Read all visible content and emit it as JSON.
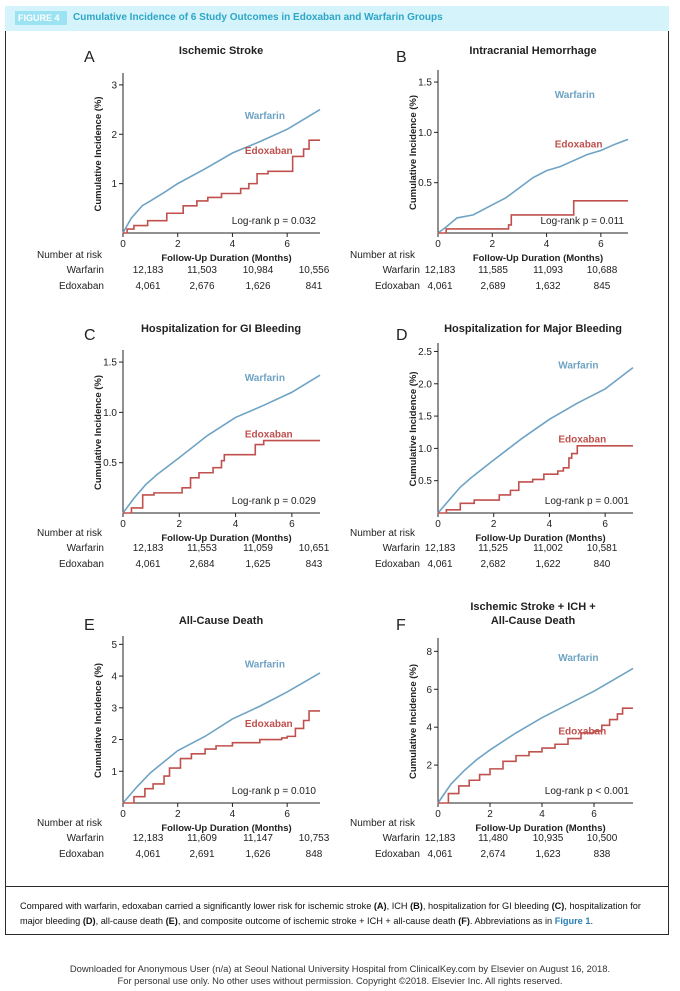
{
  "figure": {
    "label": "FIGURE 4",
    "title": "Cumulative Incidence of 6 Study Outcomes in Edoxaban and Warfarin Groups"
  },
  "caption": {
    "part1": "Compared with warfarin, edoxaban carried a significantly lower risk for ischemic stroke ",
    "a": "(A)",
    "part2": ", ICH ",
    "b": "(B)",
    "part3": ", hospitalization for GI bleeding ",
    "c": "(C)",
    "part4": ", hospitalization for major bleeding ",
    "d": "(D)",
    "part5": ", all-cause death ",
    "e": "(E)",
    "part6": ", and composite outcome of ischemic stroke + ICH + all-cause death ",
    "f": "(F)",
    "part7": ". Abbreviations as in ",
    "link": "Figure 1",
    "end": "."
  },
  "footer": {
    "line1": "Downloaded for Anonymous User (n/a) at Seoul National University Hospital from ClinicalKey.com by Elsevier on August 16, 2018.",
    "line2": "For personal use only. No other uses without permission. Copyright ©2018. Elsevier Inc. All rights reserved."
  },
  "colors": {
    "warfarin": "#6fa3c4",
    "edoxaban": "#c0504d",
    "header_bg": "#d4f3fa",
    "title": "#2da6c8"
  },
  "risk_header": "Number at risk",
  "chart_data": [
    {
      "panel": "A",
      "type": "line",
      "title": "Ischemic Stroke",
      "xlabel": "Follow-Up Duration (Months)",
      "ylabel": "Cumulative Incidence (%)",
      "xlim": [
        0,
        7.2
      ],
      "ylim": [
        0,
        3.2
      ],
      "xticks": [
        "0",
        "2",
        "4",
        "6"
      ],
      "yticks": [
        "1",
        "2",
        "3"
      ],
      "annotation": "Log-rank p = 0.032",
      "series": [
        {
          "name": "Warfarin",
          "step": false,
          "points": [
            [
              0,
              0
            ],
            [
              0.3,
              0.3
            ],
            [
              0.7,
              0.55
            ],
            [
              1,
              0.65
            ],
            [
              1.5,
              0.82
            ],
            [
              2,
              1.0
            ],
            [
              3,
              1.3
            ],
            [
              4,
              1.62
            ],
            [
              5,
              1.85
            ],
            [
              6,
              2.1
            ],
            [
              7.2,
              2.5
            ]
          ]
        },
        {
          "name": "Edoxaban",
          "step": true,
          "points": [
            [
              0,
              0
            ],
            [
              0.15,
              0.08
            ],
            [
              0.4,
              0.15
            ],
            [
              0.9,
              0.25
            ],
            [
              1.4,
              0.25
            ],
            [
              1.6,
              0.4
            ],
            [
              2.2,
              0.55
            ],
            [
              2.7,
              0.65
            ],
            [
              3.1,
              0.72
            ],
            [
              3.6,
              0.8
            ],
            [
              4.3,
              0.9
            ],
            [
              4.6,
              1.0
            ],
            [
              4.9,
              1.2
            ],
            [
              5.3,
              1.25
            ],
            [
              6.2,
              1.55
            ],
            [
              6.6,
              1.7
            ],
            [
              6.8,
              1.88
            ],
            [
              7.2,
              1.88
            ]
          ]
        }
      ],
      "risk": [
        {
          "name": "Warfarin",
          "values": [
            "12,183",
            "11,503",
            "10,984",
            "10,556"
          ]
        },
        {
          "name": "Edoxaban",
          "values": [
            "4,061",
            "2,676",
            "1,626",
            "841"
          ]
        }
      ]
    },
    {
      "panel": "B",
      "type": "line",
      "title": "Intracranial Hemorrhage",
      "xlabel": "Follow-Up Duration (Months)",
      "ylabel": "Cumulative Incidence (%)",
      "xlim": [
        0,
        7.0
      ],
      "ylim": [
        0,
        1.6
      ],
      "xticks": [
        "0",
        "2",
        "4",
        "6"
      ],
      "yticks": [
        "0.5",
        "1.0",
        "1.5"
      ],
      "annotation": "Log-rank p = 0.011",
      "series": [
        {
          "name": "Warfarin",
          "step": false,
          "points": [
            [
              0,
              0
            ],
            [
              0.3,
              0.06
            ],
            [
              0.7,
              0.15
            ],
            [
              1.3,
              0.18
            ],
            [
              2,
              0.28
            ],
            [
              2.5,
              0.35
            ],
            [
              3,
              0.45
            ],
            [
              3.5,
              0.55
            ],
            [
              4,
              0.62
            ],
            [
              4.5,
              0.66
            ],
            [
              5,
              0.72
            ],
            [
              5.5,
              0.78
            ],
            [
              6,
              0.82
            ],
            [
              6.5,
              0.88
            ],
            [
              7,
              0.93
            ]
          ]
        },
        {
          "name": "Edoxaban",
          "step": true,
          "points": [
            [
              0,
              0
            ],
            [
              0.3,
              0.04
            ],
            [
              2.0,
              0.04
            ],
            [
              2.6,
              0.08
            ],
            [
              2.7,
              0.18
            ],
            [
              4.8,
              0.18
            ],
            [
              5.0,
              0.32
            ],
            [
              7,
              0.32
            ]
          ]
        }
      ],
      "risk": [
        {
          "name": "Warfarin",
          "values": [
            "12,183",
            "11,585",
            "11,093",
            "10,688"
          ]
        },
        {
          "name": "Edoxaban",
          "values": [
            "4,061",
            "2,689",
            "1,632",
            "845"
          ]
        }
      ]
    },
    {
      "panel": "C",
      "type": "line",
      "title": "Hospitalization for GI Bleeding",
      "xlabel": "Follow-Up Duration (Months)",
      "ylabel": "Cumulative Incidence (%)",
      "xlim": [
        0,
        7.0
      ],
      "ylim": [
        0,
        1.6
      ],
      "xticks": [
        "0",
        "2",
        "4",
        "6"
      ],
      "yticks": [
        "0.5",
        "1.0",
        "1.5"
      ],
      "annotation": "Log-rank p = 0.029",
      "series": [
        {
          "name": "Warfarin",
          "step": false,
          "points": [
            [
              0,
              0
            ],
            [
              0.4,
              0.15
            ],
            [
              0.8,
              0.28
            ],
            [
              1.2,
              0.38
            ],
            [
              2,
              0.55
            ],
            [
              3,
              0.77
            ],
            [
              4,
              0.95
            ],
            [
              5,
              1.07
            ],
            [
              6,
              1.2
            ],
            [
              7,
              1.37
            ]
          ]
        },
        {
          "name": "Edoxaban",
          "step": true,
          "points": [
            [
              0,
              0
            ],
            [
              0.3,
              0.05
            ],
            [
              0.7,
              0.18
            ],
            [
              1.1,
              0.2
            ],
            [
              1.9,
              0.2
            ],
            [
              2.1,
              0.25
            ],
            [
              2.4,
              0.35
            ],
            [
              2.7,
              0.4
            ],
            [
              3.2,
              0.45
            ],
            [
              3.5,
              0.52
            ],
            [
              3.6,
              0.58
            ],
            [
              4.4,
              0.58
            ],
            [
              4.7,
              0.68
            ],
            [
              5.0,
              0.72
            ],
            [
              7,
              0.72
            ]
          ]
        }
      ],
      "risk": [
        {
          "name": "Warfarin",
          "values": [
            "12,183",
            "11,553",
            "11,059",
            "10,651"
          ]
        },
        {
          "name": "Edoxaban",
          "values": [
            "4,061",
            "2,684",
            "1,625",
            "843"
          ]
        }
      ]
    },
    {
      "panel": "D",
      "type": "line",
      "title": "Hospitalization for Major Bleeding",
      "xlabel": "Follow-Up Duration (Months)",
      "ylabel": "Cumulative Incidence (%)",
      "xlim": [
        0,
        7.0
      ],
      "ylim": [
        0,
        2.6
      ],
      "xticks": [
        "0",
        "2",
        "4",
        "6"
      ],
      "yticks": [
        "0.5",
        "1.0",
        "1.5",
        "2.0",
        "2.5"
      ],
      "annotation": "Log-rank p = 0.001",
      "series": [
        {
          "name": "Warfarin",
          "step": false,
          "points": [
            [
              0,
              0
            ],
            [
              0.4,
              0.2
            ],
            [
              0.8,
              0.4
            ],
            [
              1.2,
              0.55
            ],
            [
              2,
              0.82
            ],
            [
              3,
              1.15
            ],
            [
              4,
              1.45
            ],
            [
              5,
              1.7
            ],
            [
              6,
              1.92
            ],
            [
              7,
              2.25
            ]
          ]
        },
        {
          "name": "Edoxaban",
          "step": true,
          "points": [
            [
              0,
              0
            ],
            [
              0.3,
              0.05
            ],
            [
              0.8,
              0.15
            ],
            [
              1.3,
              0.2
            ],
            [
              2.2,
              0.28
            ],
            [
              2.6,
              0.35
            ],
            [
              2.9,
              0.48
            ],
            [
              3.4,
              0.52
            ],
            [
              3.8,
              0.6
            ],
            [
              4.3,
              0.65
            ],
            [
              4.5,
              0.7
            ],
            [
              4.7,
              0.85
            ],
            [
              4.8,
              0.92
            ],
            [
              5.0,
              1.04
            ],
            [
              7,
              1.04
            ]
          ]
        }
      ],
      "risk": [
        {
          "name": "Warfarin",
          "values": [
            "12,183",
            "11,525",
            "11,002",
            "10,581"
          ]
        },
        {
          "name": "Edoxaban",
          "values": [
            "4,061",
            "2,682",
            "1,622",
            "840"
          ]
        }
      ]
    },
    {
      "panel": "E",
      "type": "line",
      "title": "All-Cause Death",
      "xlabel": "Follow-Up Duration (Months)",
      "ylabel": "Cumulative Incidence (%)",
      "xlim": [
        0,
        7.2
      ],
      "ylim": [
        0,
        5.2
      ],
      "xticks": [
        "0",
        "2",
        "4",
        "6"
      ],
      "yticks": [
        "1",
        "2",
        "3",
        "4",
        "5"
      ],
      "annotation": "Log-rank p = 0.010",
      "series": [
        {
          "name": "Warfarin",
          "step": false,
          "points": [
            [
              0,
              0
            ],
            [
              0.5,
              0.5
            ],
            [
              1,
              0.95
            ],
            [
              1.5,
              1.3
            ],
            [
              2,
              1.65
            ],
            [
              3,
              2.1
            ],
            [
              4,
              2.65
            ],
            [
              5,
              3.05
            ],
            [
              6,
              3.5
            ],
            [
              7.2,
              4.1
            ]
          ]
        },
        {
          "name": "Edoxaban",
          "step": true,
          "points": [
            [
              0,
              0
            ],
            [
              0.4,
              0.2
            ],
            [
              0.8,
              0.45
            ],
            [
              1.1,
              0.6
            ],
            [
              1.5,
              0.85
            ],
            [
              1.7,
              1.1
            ],
            [
              2.1,
              1.4
            ],
            [
              2.5,
              1.55
            ],
            [
              3,
              1.7
            ],
            [
              3.4,
              1.8
            ],
            [
              4,
              1.9
            ],
            [
              5,
              2.0
            ],
            [
              5.8,
              2.05
            ],
            [
              6,
              2.1
            ],
            [
              6.3,
              2.35
            ],
            [
              6.6,
              2.6
            ],
            [
              6.8,
              2.9
            ],
            [
              7.2,
              2.9
            ]
          ]
        }
      ],
      "risk": [
        {
          "name": "Warfarin",
          "values": [
            "12,183",
            "11,609",
            "11,147",
            "10,753"
          ]
        },
        {
          "name": "Edoxaban",
          "values": [
            "4,061",
            "2,691",
            "1,626",
            "848"
          ]
        }
      ]
    },
    {
      "panel": "F",
      "type": "line",
      "title": [
        "Ischemic Stroke + ICH +",
        "All-Cause Death"
      ],
      "xlabel": "Follow-Up Duration (Months)",
      "ylabel": "Cumulative Incidence (%)",
      "xlim": [
        0,
        7.5
      ],
      "ylim": [
        0,
        8.6
      ],
      "xticks": [
        "0",
        "2",
        "4",
        "6"
      ],
      "yticks": [
        "2",
        "4",
        "6",
        "8"
      ],
      "annotation": "Log-rank p < 0.001",
      "series": [
        {
          "name": "Warfarin",
          "step": false,
          "points": [
            [
              0,
              0
            ],
            [
              0.5,
              1.0
            ],
            [
              1,
              1.7
            ],
            [
              1.5,
              2.3
            ],
            [
              2,
              2.8
            ],
            [
              3,
              3.7
            ],
            [
              4,
              4.5
            ],
            [
              5,
              5.2
            ],
            [
              6,
              5.9
            ],
            [
              7,
              6.7
            ],
            [
              7.5,
              7.1
            ]
          ]
        },
        {
          "name": "Edoxaban",
          "step": true,
          "points": [
            [
              0,
              0
            ],
            [
              0.4,
              0.5
            ],
            [
              0.8,
              0.9
            ],
            [
              1.2,
              1.2
            ],
            [
              1.6,
              1.5
            ],
            [
              2,
              1.8
            ],
            [
              2.5,
              2.2
            ],
            [
              3,
              2.5
            ],
            [
              3.5,
              2.7
            ],
            [
              4,
              2.9
            ],
            [
              4.5,
              3.1
            ],
            [
              5,
              3.4
            ],
            [
              5.5,
              3.7
            ],
            [
              6,
              3.8
            ],
            [
              6.3,
              4.1
            ],
            [
              6.6,
              4.4
            ],
            [
              6.9,
              4.7
            ],
            [
              7.1,
              5.0
            ],
            [
              7.5,
              5.0
            ]
          ]
        }
      ],
      "risk": [
        {
          "name": "Warfarin",
          "values": [
            "12,183",
            "11,480",
            "10,935",
            "10,500"
          ]
        },
        {
          "name": "Edoxaban",
          "values": [
            "4,061",
            "2,674",
            "1,623",
            "838"
          ]
        }
      ]
    }
  ]
}
